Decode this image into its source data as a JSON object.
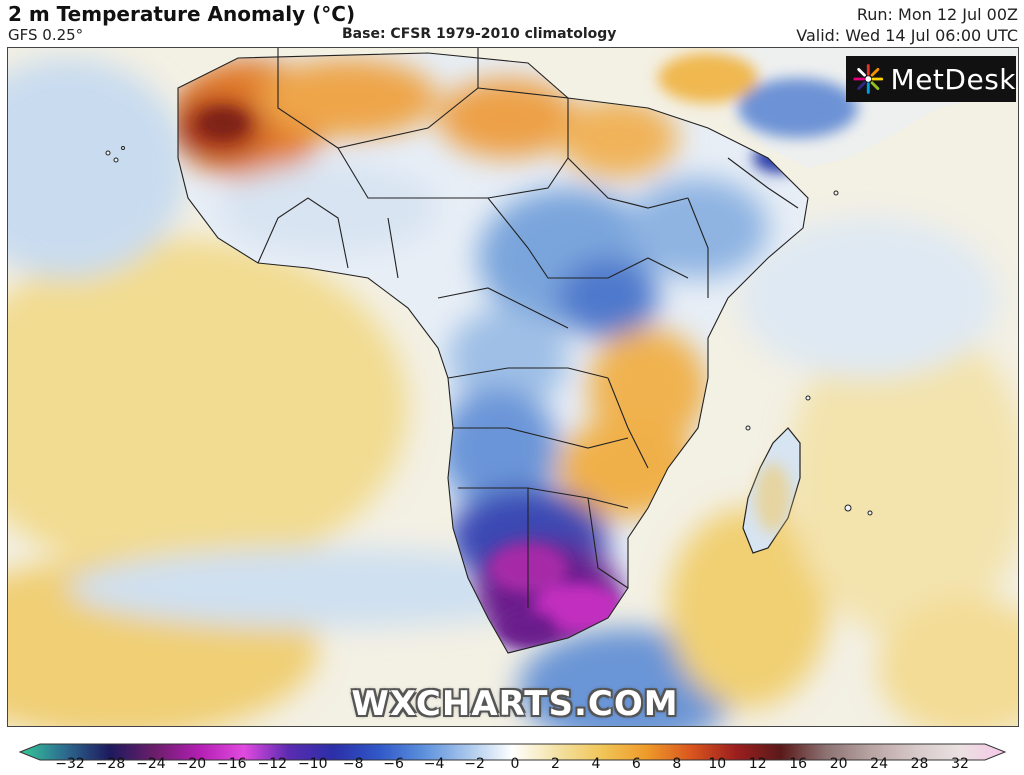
{
  "header": {
    "title": "2 m Temperature Anomaly (°C)",
    "model": "GFS 0.25°",
    "base": "Base: CFSR 1979-2010 climatology",
    "run": "Run: Mon 12 Jul 00Z",
    "valid": "Valid: Wed 14 Jul 06:00 UTC"
  },
  "logo": {
    "text": "MetDesk"
  },
  "watermark": "WXCHARTS.COM",
  "colorbar": {
    "ticks": [
      "−32",
      "−28",
      "−24",
      "−20",
      "−16",
      "−12",
      "−10",
      "−8",
      "−6",
      "−4",
      "−2",
      "0",
      "2",
      "4",
      "6",
      "8",
      "10",
      "12",
      "16",
      "20",
      "24",
      "28",
      "32"
    ],
    "colors": [
      "#35c99a",
      "#2d6b8f",
      "#1d1a5e",
      "#6a1e6a",
      "#b21fb2",
      "#e14ae0",
      "#5b2bb0",
      "#2b2fa8",
      "#3057c8",
      "#5b8fdc",
      "#a9c7ec",
      "#ffffff",
      "#f3e2a4",
      "#f1c558",
      "#ee9a2a",
      "#d9551e",
      "#9b1e1e",
      "#5a1a1a",
      "#8d7272",
      "#b9a3a3",
      "#d7c9c9",
      "#ebe1e1",
      "#f6c7e8"
    ]
  },
  "map": {
    "region": "Africa and surrounding oceans",
    "colors": {
      "ocean_warm": "#f2de9a",
      "ocean_neutral": "#f4f1e6",
      "ocean_cool": "#c5d9ee",
      "cold_anomaly": "#3b3fb8",
      "very_cold": "#9a2ba6",
      "warm_anomaly": "#eea13c",
      "hot_anomaly": "#b13a1e",
      "borders": "#222222"
    }
  }
}
